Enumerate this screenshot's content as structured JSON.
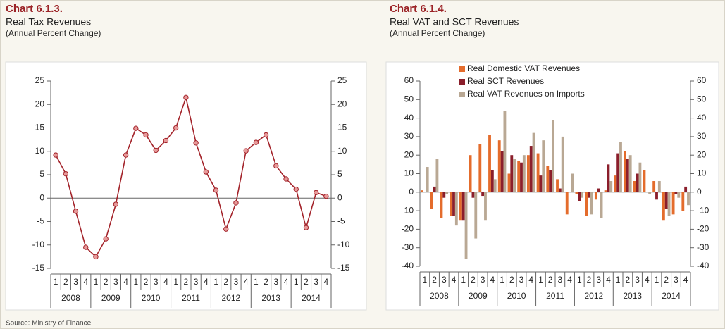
{
  "chart_data": [
    {
      "type": "line",
      "label": "Chart 6.1.3.",
      "title": "Real Tax Revenues",
      "subtitle": "(Annual Percent Change)",
      "categories": [
        "1",
        "2",
        "3",
        "4",
        "1",
        "2",
        "3",
        "4",
        "1",
        "2",
        "3",
        "4",
        "1",
        "2",
        "3",
        "4",
        "1",
        "2",
        "3",
        "4",
        "1",
        "2",
        "3",
        "4",
        "1",
        "2",
        "3",
        "4"
      ],
      "year_groups": [
        "2008",
        "2009",
        "2010",
        "2011",
        "2012",
        "2013",
        "2014"
      ],
      "values": [
        9.2,
        5.2,
        -2.8,
        -10.5,
        -12.5,
        -8.7,
        -1.3,
        9.2,
        14.9,
        13.5,
        10.2,
        12.3,
        15.0,
        21.5,
        11.8,
        5.6,
        1.7,
        -6.6,
        -1.0,
        10.1,
        11.9,
        13.5,
        6.9,
        4.1,
        1.9,
        -6.3,
        1.2,
        0.4
      ],
      "color": "#a3232a",
      "ylim": [
        -15,
        25
      ],
      "yticks": [
        -15,
        -10,
        -5,
        0,
        5,
        10,
        15,
        20,
        25
      ],
      "y2lim": [
        -15,
        25
      ],
      "y2ticks": [
        -15,
        -10,
        -5,
        0,
        5,
        10,
        15,
        20,
        25
      ]
    },
    {
      "type": "bar",
      "label": "Chart 6.1.4.",
      "title": "Real VAT and SCT Revenues",
      "subtitle": "(Annual Percent Change)",
      "categories": [
        "1",
        "2",
        "3",
        "4",
        "1",
        "2",
        "3",
        "4",
        "1",
        "2",
        "3",
        "4",
        "1",
        "2",
        "3",
        "4",
        "1",
        "2",
        "3",
        "4",
        "1",
        "2",
        "3",
        "4",
        "1",
        "2",
        "3",
        "4"
      ],
      "year_groups": [
        "2008",
        "2009",
        "2010",
        "2011",
        "2012",
        "2013",
        "2014"
      ],
      "series": [
        {
          "name": "Real Domestic VAT Revenues",
          "color": "#e46c2c",
          "values": [
            1,
            -9,
            -14,
            -13,
            -15,
            20,
            26,
            31,
            28,
            10,
            17,
            20,
            21,
            14,
            7,
            -12,
            -1,
            -13,
            -4,
            1,
            9,
            22,
            6,
            12,
            6,
            -15,
            -12,
            -10
          ]
        },
        {
          "name": "Real SCT Revenues",
          "color": "#8b1e2b",
          "values": [
            0,
            3,
            -3,
            -13,
            -15,
            -3,
            -2,
            12,
            22,
            20,
            16,
            25,
            9,
            12,
            2,
            0,
            -5,
            -3,
            2,
            15,
            21,
            18,
            10,
            0,
            -4,
            -9,
            -1,
            3
          ]
        },
        {
          "name": "Real VAT  Revenues on Imports",
          "color": "#b9a894",
          "values": [
            13.6,
            18,
            -1,
            -18,
            -36,
            -25,
            -15,
            7,
            44,
            18,
            20,
            32,
            28,
            39,
            30,
            10,
            -3,
            -12,
            -14,
            6,
            27,
            20,
            16,
            -1,
            6,
            -13,
            -3,
            -7
          ]
        }
      ],
      "ylim": [
        -40,
        60
      ],
      "yticks": [
        -40,
        -30,
        -20,
        -10,
        0,
        10,
        20,
        30,
        40,
        50,
        60
      ],
      "y2lim": [
        -40,
        60
      ],
      "y2ticks": [
        -40,
        -30,
        -20,
        -10,
        0,
        10,
        20,
        30,
        40,
        50,
        60
      ]
    }
  ],
  "source": "Source: Ministry of Finance."
}
